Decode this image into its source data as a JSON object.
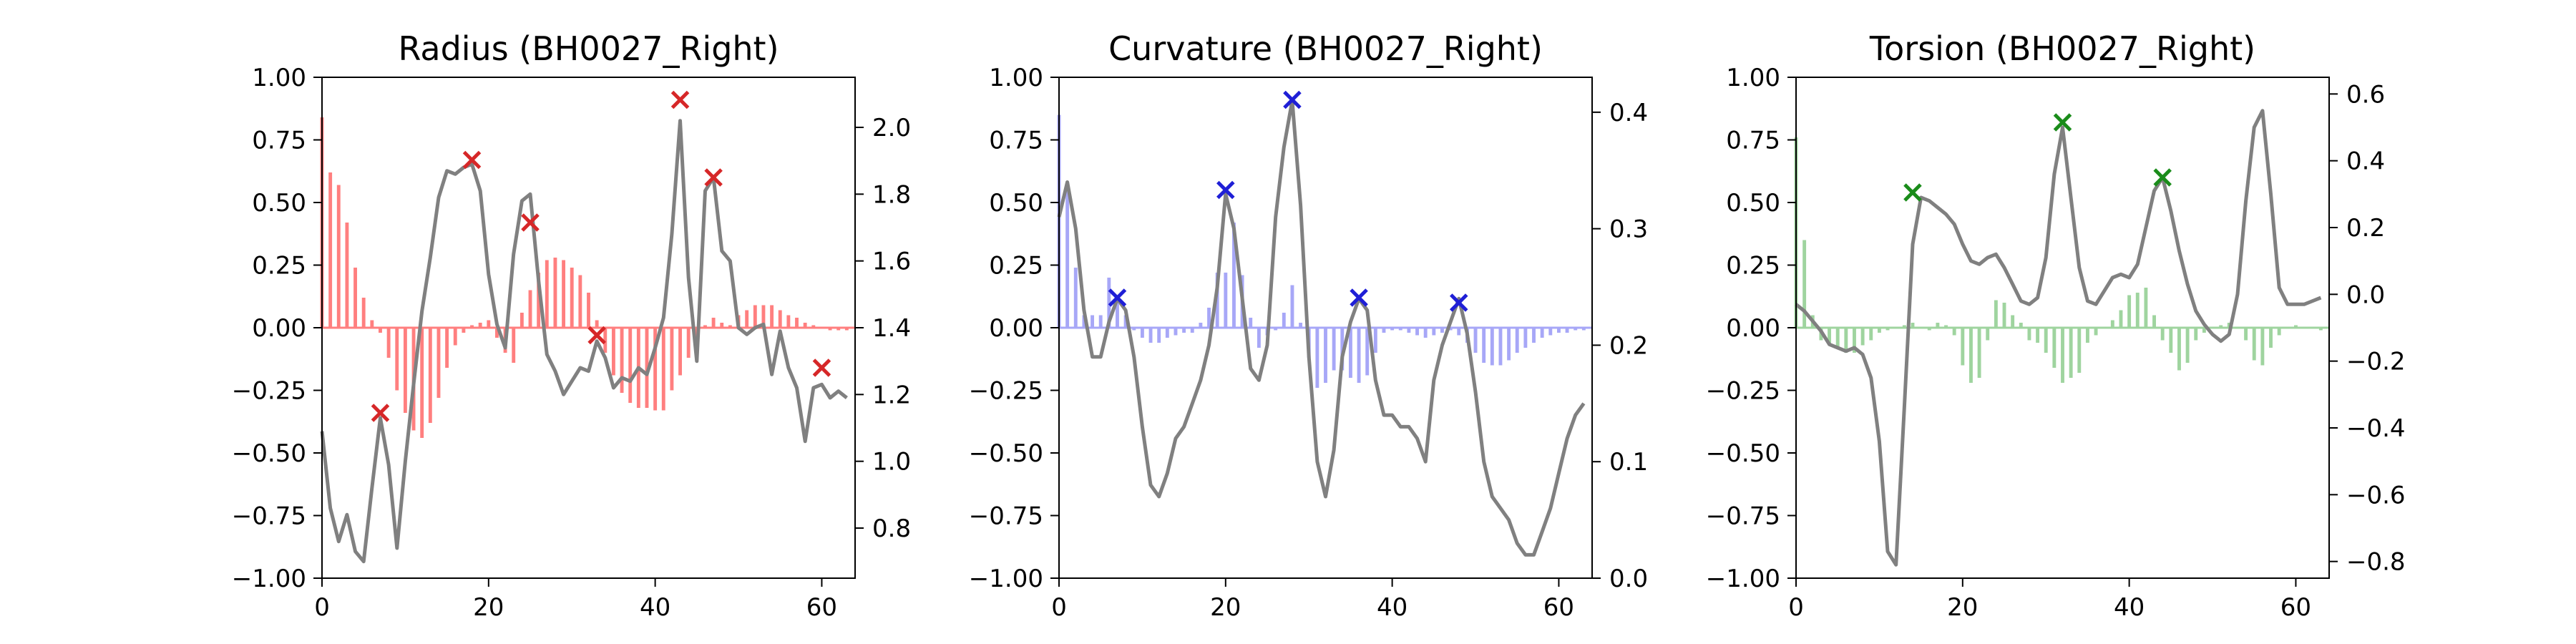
{
  "chart_data": [
    {
      "type": "bar",
      "title": "Radius (BH0027_Right)",
      "bar_color": "#ff7f7f",
      "line_color": "#808080",
      "marker_color": "#d62728",
      "xlim": [
        0,
        64
      ],
      "ylim_left": [
        -1.0,
        1.0
      ],
      "ylim_right": [
        0.65,
        2.15
      ],
      "x_ticks": [
        0,
        20,
        40,
        60
      ],
      "y_left_ticks": [
        -1.0,
        -0.75,
        -0.5,
        -0.25,
        0.0,
        0.25,
        0.5,
        0.75,
        1.0
      ],
      "y_right_ticks": [
        0.8,
        1.0,
        1.2,
        1.4,
        1.6,
        1.8,
        2.0
      ],
      "bars": [
        0.84,
        0.62,
        0.57,
        0.42,
        0.24,
        0.12,
        0.03,
        -0.02,
        -0.12,
        -0.25,
        -0.34,
        -0.41,
        -0.44,
        -0.38,
        -0.28,
        -0.16,
        -0.07,
        -0.02,
        0.01,
        0.02,
        0.03,
        -0.04,
        -0.1,
        -0.14,
        0.06,
        0.15,
        0.22,
        0.27,
        0.28,
        0.27,
        0.24,
        0.21,
        0.14,
        0.03,
        -0.1,
        -0.19,
        -0.26,
        -0.3,
        -0.32,
        -0.32,
        -0.33,
        -0.33,
        -0.25,
        -0.19,
        -0.12,
        -0.05,
        0.01,
        0.04,
        0.02,
        0.01,
        0.05,
        0.07,
        0.09,
        0.09,
        0.09,
        0.07,
        0.05,
        0.04,
        0.02,
        0.01,
        0.0,
        -0.01,
        -0.01,
        -0.01
      ],
      "line": [
        1.09,
        0.86,
        0.76,
        0.84,
        0.73,
        0.7,
        0.92,
        1.13,
        0.99,
        0.74,
        1.0,
        1.23,
        1.45,
        1.61,
        1.79,
        1.87,
        1.86,
        1.88,
        1.89,
        1.81,
        1.56,
        1.41,
        1.34,
        1.62,
        1.78,
        1.8,
        1.54,
        1.32,
        1.27,
        1.2,
        1.24,
        1.28,
        1.27,
        1.36,
        1.31,
        1.22,
        1.25,
        1.24,
        1.28,
        1.26,
        1.34,
        1.43,
        1.68,
        2.02,
        1.55,
        1.3,
        1.81,
        1.85,
        1.63,
        1.6,
        1.4,
        1.38,
        1.4,
        1.41,
        1.26,
        1.39,
        1.28,
        1.22,
        1.06,
        1.22,
        1.23,
        1.19,
        1.21,
        1.19
      ],
      "markers": [
        {
          "x": 7,
          "y": -0.34
        },
        {
          "x": 18,
          "y": 0.67
        },
        {
          "x": 25,
          "y": 0.42
        },
        {
          "x": 33,
          "y": -0.03
        },
        {
          "x": 43,
          "y": 0.91
        },
        {
          "x": 47,
          "y": 0.6
        },
        {
          "x": 60,
          "y": -0.16
        }
      ]
    },
    {
      "type": "bar",
      "title": "Curvature (BH0027_Right)",
      "bar_color": "#a7a7f7",
      "line_color": "#808080",
      "marker_color": "#1f1fd6",
      "xlim": [
        0,
        64
      ],
      "ylim_left": [
        -1.0,
        1.0
      ],
      "ylim_right": [
        0.0,
        0.43
      ],
      "x_ticks": [
        0,
        20,
        40,
        60
      ],
      "y_left_ticks": [
        -1.0,
        -0.75,
        -0.5,
        -0.25,
        0.0,
        0.25,
        0.5,
        0.75,
        1.0
      ],
      "y_right_ticks": [
        0.0,
        0.1,
        0.2,
        0.3,
        0.4
      ],
      "bars": [
        0.85,
        0.58,
        0.24,
        0.05,
        0.05,
        0.05,
        0.2,
        0.12,
        0.05,
        -0.01,
        -0.04,
        -0.06,
        -0.06,
        -0.04,
        -0.03,
        -0.02,
        -0.02,
        0.02,
        0.08,
        0.22,
        0.22,
        0.42,
        0.21,
        0.04,
        -0.08,
        -0.03,
        -0.01,
        0.06,
        0.17,
        0.02,
        -0.12,
        -0.24,
        -0.22,
        -0.17,
        -0.17,
        -0.2,
        -0.22,
        -0.19,
        -0.1,
        -0.02,
        -0.01,
        -0.01,
        -0.02,
        -0.03,
        -0.04,
        -0.03,
        -0.02,
        -0.01,
        -0.03,
        -0.06,
        -0.1,
        -0.14,
        -0.15,
        -0.15,
        -0.13,
        -0.1,
        -0.08,
        -0.06,
        -0.04,
        -0.03,
        -0.02,
        -0.02,
        -0.01,
        -0.01
      ],
      "line": [
        0.31,
        0.34,
        0.3,
        0.23,
        0.19,
        0.19,
        0.22,
        0.24,
        0.23,
        0.19,
        0.13,
        0.08,
        0.07,
        0.09,
        0.12,
        0.13,
        0.15,
        0.17,
        0.2,
        0.25,
        0.33,
        0.3,
        0.24,
        0.18,
        0.17,
        0.2,
        0.31,
        0.37,
        0.41,
        0.32,
        0.19,
        0.1,
        0.07,
        0.11,
        0.19,
        0.22,
        0.24,
        0.23,
        0.17,
        0.14,
        0.14,
        0.13,
        0.13,
        0.12,
        0.1,
        0.17,
        0.2,
        0.22,
        0.24,
        0.21,
        0.16,
        0.1,
        0.07,
        0.06,
        0.05,
        0.03,
        0.02,
        0.02,
        0.04,
        0.06,
        0.09,
        0.12,
        0.14,
        0.15
      ],
      "markers": [
        {
          "x": 7,
          "y": 0.12
        },
        {
          "x": 20,
          "y": 0.55
        },
        {
          "x": 28,
          "y": 0.91
        },
        {
          "x": 36,
          "y": 0.12
        },
        {
          "x": 48,
          "y": 0.1
        }
      ]
    },
    {
      "type": "bar",
      "title": "Torsion (BH0027_Right)",
      "bar_color": "#9fd49f",
      "line_color": "#808080",
      "marker_color": "#1a8c1a",
      "xlim": [
        0,
        64
      ],
      "ylim_left": [
        -1.0,
        1.0
      ],
      "ylim_right": [
        -0.85,
        0.65
      ],
      "x_ticks": [
        0,
        20,
        40,
        60
      ],
      "y_left_ticks": [
        -1.0,
        -0.75,
        -0.5,
        -0.25,
        0.0,
        0.25,
        0.5,
        0.75,
        1.0
      ],
      "y_right_ticks": [
        -0.8,
        -0.6,
        -0.4,
        -0.2,
        0.0,
        0.2,
        0.4,
        0.6
      ],
      "bars": [
        0.76,
        0.35,
        0.05,
        -0.05,
        -0.07,
        -0.08,
        -0.1,
        -0.1,
        -0.07,
        -0.05,
        -0.02,
        -0.01,
        0.0,
        0.01,
        0.02,
        0.0,
        -0.01,
        0.02,
        0.01,
        -0.03,
        -0.15,
        -0.22,
        -0.2,
        -0.05,
        0.11,
        0.1,
        0.05,
        0.02,
        -0.05,
        -0.06,
        -0.1,
        -0.16,
        -0.22,
        -0.2,
        -0.18,
        -0.06,
        -0.03,
        0.0,
        0.03,
        0.07,
        0.13,
        0.14,
        0.16,
        0.05,
        -0.05,
        -0.1,
        -0.17,
        -0.14,
        -0.05,
        -0.02,
        0.0,
        0.01,
        0.02,
        0.0,
        -0.05,
        -0.13,
        -0.15,
        -0.08,
        -0.03,
        0.0,
        0.01,
        0.0,
        0.0,
        -0.01
      ],
      "line": [
        -0.03,
        -0.05,
        -0.08,
        -0.11,
        -0.15,
        -0.16,
        -0.17,
        -0.16,
        -0.18,
        -0.25,
        -0.44,
        -0.77,
        -0.81,
        -0.34,
        0.15,
        0.29,
        0.28,
        0.26,
        0.24,
        0.21,
        0.15,
        0.1,
        0.09,
        0.11,
        0.12,
        0.08,
        0.03,
        -0.02,
        -0.03,
        -0.01,
        0.11,
        0.36,
        0.5,
        0.29,
        0.08,
        -0.02,
        -0.03,
        0.01,
        0.05,
        0.06,
        0.05,
        0.09,
        0.2,
        0.31,
        0.35,
        0.25,
        0.13,
        0.03,
        -0.05,
        -0.09,
        -0.12,
        -0.14,
        -0.12,
        0.0,
        0.28,
        0.5,
        0.55,
        0.3,
        0.02,
        -0.03,
        -0.03,
        -0.03,
        -0.02,
        -0.01
      ],
      "markers": [
        {
          "x": 14,
          "y": 0.54
        },
        {
          "x": 32,
          "y": 0.82
        },
        {
          "x": 44,
          "y": 0.6
        }
      ]
    }
  ]
}
